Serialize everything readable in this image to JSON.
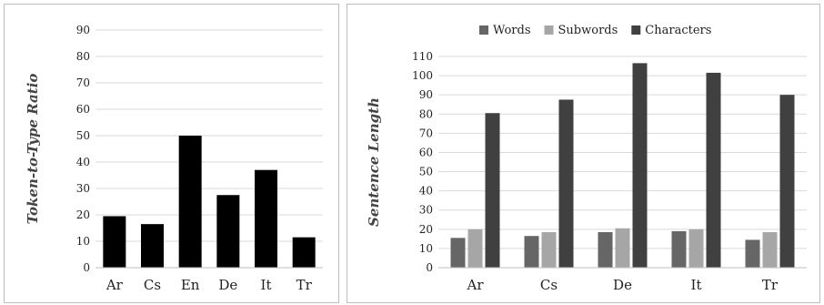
{
  "chart_data": [
    {
      "type": "bar",
      "ylabel": "Token-to-Type Ratio",
      "categories": [
        "Ar",
        "Cs",
        "En",
        "De",
        "It",
        "Tr"
      ],
      "series": [
        {
          "values": [
            19.5,
            16.5,
            50,
            27.5,
            37,
            11.5
          ],
          "color": "#000000"
        }
      ],
      "ylim": [
        0,
        90
      ],
      "yticks": [
        0,
        10,
        20,
        30,
        40,
        50,
        60,
        70,
        80,
        90
      ],
      "grid": true
    },
    {
      "type": "bar",
      "ylabel": "Sentence Length",
      "categories": [
        "Ar",
        "Cs",
        "De",
        "It",
        "Tr"
      ],
      "series": [
        {
          "name": "Words",
          "values": [
            15.5,
            16.5,
            18.5,
            19,
            14.5
          ],
          "color": "#666666"
        },
        {
          "name": "Subwords",
          "values": [
            20,
            18.5,
            20.5,
            20,
            18.5
          ],
          "color": "#a6a6a6"
        },
        {
          "name": "Characters",
          "values": [
            80.5,
            87.5,
            106.5,
            101.5,
            90
          ],
          "color": "#404040"
        }
      ],
      "ylim": [
        0,
        110
      ],
      "yticks": [
        0,
        10,
        20,
        30,
        40,
        50,
        60,
        70,
        80,
        90,
        100,
        110
      ],
      "legend": "top",
      "grid": true
    }
  ]
}
